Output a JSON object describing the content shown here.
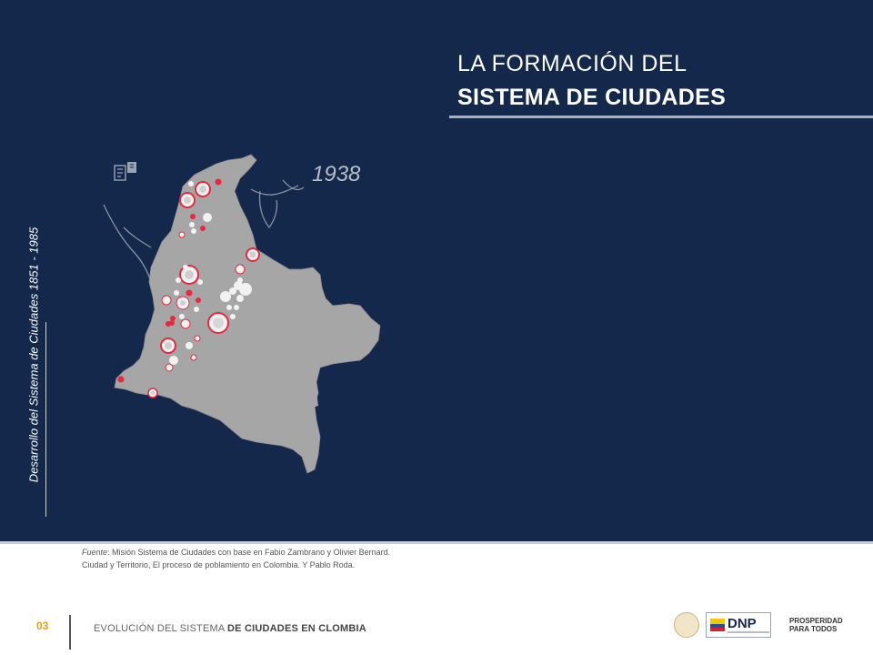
{
  "slide": {
    "title_line1": "LA FORMACIÓN DEL",
    "title_line2": "SISTEMA DE CIUDADES",
    "side_label": "Desarrollo del Sistema de Ciudades 1851 - 1985",
    "map_year": "1938",
    "map_icon": "newspaper-icon"
  },
  "source": {
    "label": "Fuente",
    "text_line1": ": Misión Sistema de Ciudades con base en Fabio Zambrano y Olivier Bernard.",
    "text_line2": "Ciudad y Territorio, El proceso de poblamiento en Colombia. Y Pablo Roda."
  },
  "footer": {
    "page_number": "03",
    "text_regular": "EVOLUCIÓN DEL SISTEMA ",
    "text_bold": "DE CIUDADES EN CLOMBIA",
    "logo_dnp": "DNP",
    "logo_pp_line1": "PROSPERIDAD",
    "logo_pp_line2": "PARA TODOS"
  },
  "colors": {
    "panel_bg": "#13284a",
    "map_fill": "#a6a6a6",
    "city_ring": "#e8283c",
    "city_white": "#f2f2f2",
    "page_number": "#e8a000"
  }
}
